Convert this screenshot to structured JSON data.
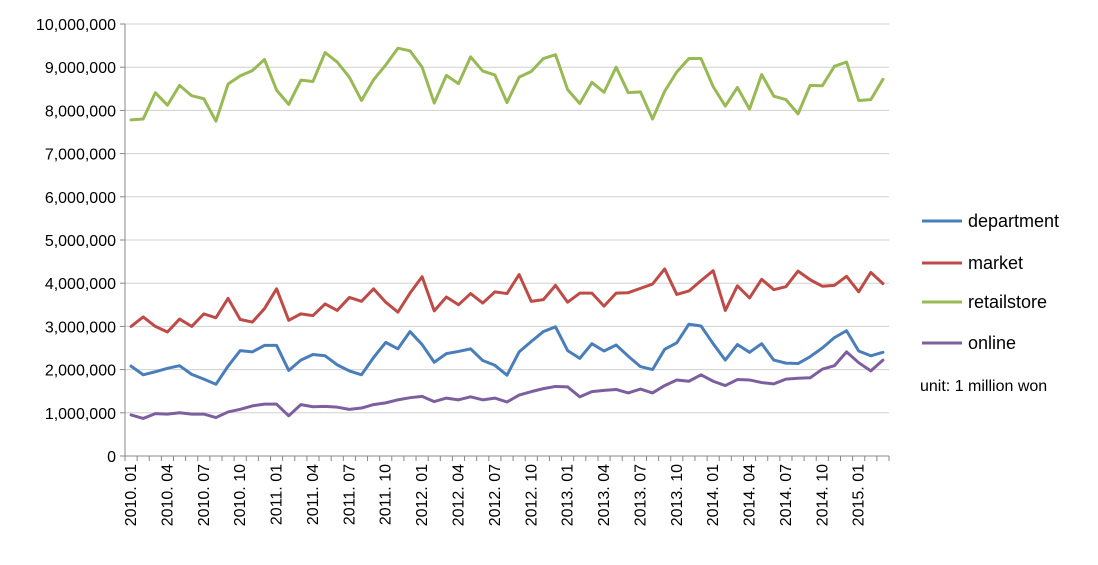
{
  "chart_data": {
    "type": "line",
    "unit_note": "unit: 1 million won",
    "ylim": [
      0,
      10000000
    ],
    "y_ticks": [
      "0",
      "1,000,000",
      "2,000,000",
      "3,000,000",
      "4,000,000",
      "5,000,000",
      "6,000,000",
      "7,000,000",
      "8,000,000",
      "9,000,000",
      "10,000,000"
    ],
    "y_tick_values": [
      0,
      1000000,
      2000000,
      3000000,
      4000000,
      5000000,
      6000000,
      7000000,
      8000000,
      9000000,
      10000000
    ],
    "x_ticks": [
      "2010. 01",
      "2010. 04",
      "2010. 07",
      "2010. 10",
      "2011. 01",
      "2011. 04",
      "2011. 07",
      "2011. 10",
      "2012. 01",
      "2012. 04",
      "2012. 07",
      "2012. 10",
      "2013. 01",
      "2013. 04",
      "2013. 07",
      "2013. 10",
      "2014. 01",
      "2014. 04",
      "2014. 07",
      "2014. 10",
      "2015. 01"
    ],
    "grid": "horizontal",
    "legend_placement": "right",
    "series": [
      {
        "name": "department",
        "color": "#4a7ebb",
        "values": [
          2080000,
          1880000,
          1950000,
          2030000,
          2090000,
          1890000,
          1780000,
          1660000,
          2080000,
          2440000,
          2410000,
          2560000,
          2560000,
          1980000,
          2220000,
          2350000,
          2320000,
          2110000,
          1970000,
          1880000,
          2280000,
          2630000,
          2480000,
          2880000,
          2580000,
          2170000,
          2370000,
          2420000,
          2480000,
          2210000,
          2100000,
          1870000,
          2410000,
          2650000,
          2880000,
          2990000,
          2440000,
          2260000,
          2600000,
          2430000,
          2570000,
          2310000,
          2070000,
          2000000,
          2470000,
          2620000,
          3050000,
          3010000,
          2600000,
          2220000,
          2580000,
          2400000,
          2600000,
          2220000,
          2150000,
          2140000,
          2300000,
          2500000,
          2740000,
          2900000,
          2430000,
          2320000,
          2400000
        ]
      },
      {
        "name": "market",
        "color": "#be4b48",
        "values": [
          3000000,
          3220000,
          3000000,
          2870000,
          3170000,
          3000000,
          3290000,
          3200000,
          3650000,
          3160000,
          3100000,
          3410000,
          3870000,
          3140000,
          3290000,
          3250000,
          3520000,
          3370000,
          3670000,
          3580000,
          3870000,
          3560000,
          3330000,
          3770000,
          4150000,
          3360000,
          3680000,
          3500000,
          3760000,
          3540000,
          3800000,
          3760000,
          4200000,
          3580000,
          3620000,
          3950000,
          3560000,
          3770000,
          3770000,
          3470000,
          3770000,
          3780000,
          3880000,
          3980000,
          4330000,
          3740000,
          3820000,
          4060000,
          4290000,
          3370000,
          3940000,
          3660000,
          4090000,
          3850000,
          3920000,
          4280000,
          4080000,
          3930000,
          3950000,
          4160000,
          3800000,
          4250000,
          3990000
        ]
      },
      {
        "name": "retailstore",
        "color": "#98b954",
        "values": [
          7780000,
          7800000,
          8410000,
          8120000,
          8580000,
          8340000,
          8270000,
          7750000,
          8610000,
          8800000,
          8920000,
          9180000,
          8470000,
          8140000,
          8700000,
          8670000,
          9340000,
          9120000,
          8770000,
          8230000,
          8710000,
          9050000,
          9440000,
          9380000,
          9000000,
          8170000,
          8810000,
          8620000,
          9240000,
          8910000,
          8820000,
          8180000,
          8770000,
          8900000,
          9200000,
          9290000,
          8480000,
          8160000,
          8650000,
          8420000,
          9000000,
          8410000,
          8430000,
          7800000,
          8440000,
          8890000,
          9200000,
          9200000,
          8550000,
          8100000,
          8530000,
          8030000,
          8830000,
          8330000,
          8250000,
          7920000,
          8580000,
          8570000,
          9020000,
          9120000,
          8230000,
          8250000,
          8720000
        ]
      },
      {
        "name": "online",
        "color": "#7d5fa0",
        "values": [
          950000,
          870000,
          980000,
          970000,
          1000000,
          970000,
          970000,
          890000,
          1020000,
          1080000,
          1160000,
          1200000,
          1200000,
          930000,
          1190000,
          1140000,
          1150000,
          1130000,
          1080000,
          1110000,
          1190000,
          1230000,
          1300000,
          1350000,
          1380000,
          1260000,
          1340000,
          1300000,
          1370000,
          1300000,
          1340000,
          1250000,
          1410000,
          1490000,
          1560000,
          1610000,
          1600000,
          1370000,
          1490000,
          1520000,
          1540000,
          1460000,
          1550000,
          1460000,
          1630000,
          1760000,
          1730000,
          1880000,
          1730000,
          1630000,
          1770000,
          1760000,
          1700000,
          1670000,
          1780000,
          1800000,
          1810000,
          2010000,
          2090000,
          2410000,
          2160000,
          1970000,
          2220000
        ]
      }
    ]
  }
}
